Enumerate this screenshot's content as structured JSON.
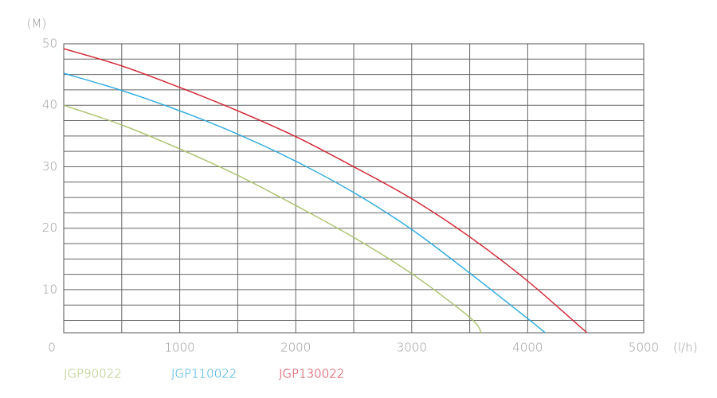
{
  "chart_data": {
    "type": "line",
    "y_unit": "(M)",
    "x_unit": "(l/h)",
    "xlim": [
      0,
      5000
    ],
    "xticks": [
      0,
      1000,
      2000,
      3000,
      4000,
      5000
    ],
    "x_grid": [
      500,
      1000,
      1500,
      2000,
      2500,
      3000,
      3500,
      4000,
      4500
    ],
    "ylim": [
      3,
      50
    ],
    "yticks": [
      10,
      20,
      30,
      40,
      50
    ],
    "y_grid": [
      5,
      7.5,
      10,
      12.5,
      15,
      17.5,
      20,
      22.5,
      25,
      27.5,
      30,
      32.5,
      35,
      37.5,
      40,
      42.5,
      45,
      47.5
    ],
    "grid": true,
    "series": [
      {
        "name": "JGP90022",
        "color": "#a9c16c",
        "x": [
          0,
          500,
          1000,
          1500,
          2000,
          2500,
          3000,
          3500,
          3600
        ],
        "values": [
          40,
          36.8,
          32.9,
          28.6,
          23.7,
          18.5,
          12.6,
          5.5,
          3
        ]
      },
      {
        "name": "JGP110022",
        "color": "#2aa9e0",
        "x": [
          0,
          500,
          1000,
          1500,
          2000,
          2500,
          3000,
          3500,
          4000,
          4150
        ],
        "values": [
          45.2,
          42.4,
          39.1,
          35.3,
          30.9,
          25.8,
          19.8,
          12.7,
          5.3,
          3
        ]
      },
      {
        "name": "JGP130022",
        "color": "#d3202f",
        "x": [
          0,
          500,
          1000,
          1500,
          2000,
          2500,
          3000,
          3500,
          4000,
          4510
        ],
        "values": [
          49.2,
          46.4,
          42.9,
          39.1,
          34.9,
          30.0,
          24.8,
          18.6,
          11.4,
          3
        ]
      }
    ]
  }
}
